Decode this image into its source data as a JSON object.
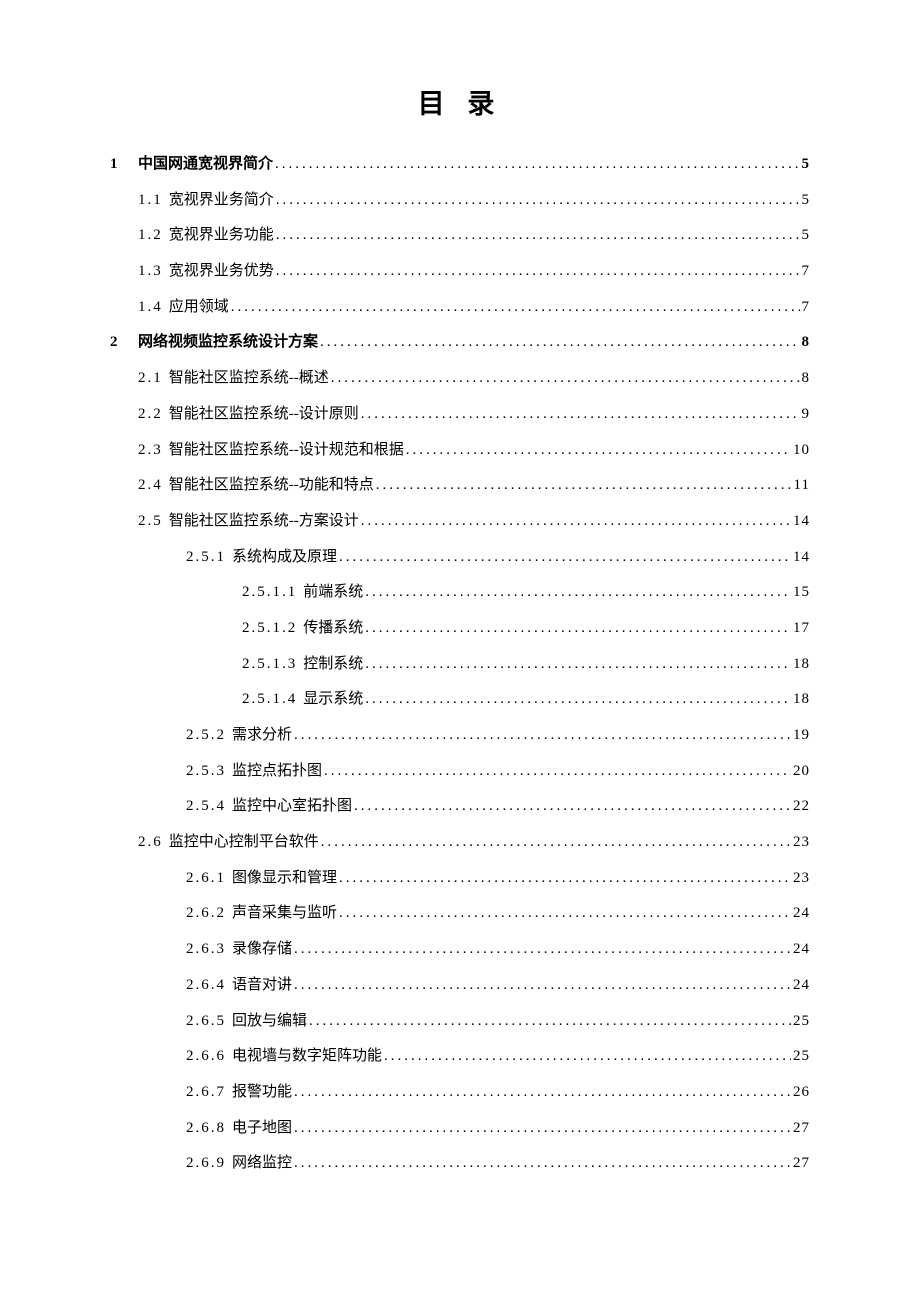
{
  "title": "目 录",
  "background_color": "#ffffff",
  "text_color": "#000000",
  "font_family": "SimSun",
  "title_fontsize": 27,
  "body_fontsize": 15,
  "line_height": 2.38,
  "entries": [
    {
      "level": 0,
      "num": "1",
      "title": "中国网通宽视界简介",
      "page": "5",
      "bold": true,
      "chapter": "1"
    },
    {
      "level": 1,
      "num": "1.1",
      "title": "宽视界业务简介",
      "page": "5"
    },
    {
      "level": 1,
      "num": "1.2",
      "title": "宽视界业务功能",
      "page": "5"
    },
    {
      "level": 1,
      "num": "1.3",
      "title": "宽视界业务优势",
      "page": "7"
    },
    {
      "level": 1,
      "num": "1.4",
      "title": "应用领域",
      "page": "7"
    },
    {
      "level": 0,
      "num": "2",
      "title": "网络视频监控系统设计方案",
      "page": "8",
      "bold": true,
      "chapter": "2"
    },
    {
      "level": 1,
      "num": "2.1",
      "title": "智能社区监控系统--概述",
      "page": "8"
    },
    {
      "level": 1,
      "num": "2.2",
      "title": "智能社区监控系统--设计原则",
      "page": "9"
    },
    {
      "level": 1,
      "num": "2.3",
      "title": "智能社区监控系统--设计规范和根据",
      "page": "10"
    },
    {
      "level": 1,
      "num": "2.4",
      "title": "智能社区监控系统--功能和特点",
      "page": "11"
    },
    {
      "level": 1,
      "num": "2.5",
      "title": "智能社区监控系统--方案设计",
      "page": "14"
    },
    {
      "level": 2,
      "num": "2.5.1",
      "title": "系统构成及原理",
      "page": "14"
    },
    {
      "level": 3,
      "num": "2.5.1.1",
      "title": "前端系统",
      "page": "15"
    },
    {
      "level": 3,
      "num": "2.5.1.2",
      "title": "传播系统",
      "page": "17"
    },
    {
      "level": 3,
      "num": "2.5.1.3",
      "title": "控制系统",
      "page": "18"
    },
    {
      "level": 3,
      "num": "2.5.1.4",
      "title": "显示系统",
      "page": "18"
    },
    {
      "level": 2,
      "num": "2.5.2",
      "title": "需求分析",
      "page": "19"
    },
    {
      "level": 2,
      "num": "2.5.3",
      "title": "监控点拓扑图",
      "page": "20"
    },
    {
      "level": 2,
      "num": "2.5.4",
      "title": "监控中心室拓扑图",
      "page": "22"
    },
    {
      "level": 1,
      "num": "2.6",
      "title": "监控中心控制平台软件",
      "page": "23"
    },
    {
      "level": 2,
      "num": "2.6.1",
      "title": "图像显示和管理",
      "page": "23"
    },
    {
      "level": 2,
      "num": "2.6.2",
      "title": "声音采集与监听",
      "page": "24"
    },
    {
      "level": 2,
      "num": "2.6.3",
      "title": "录像存储",
      "page": "24"
    },
    {
      "level": 2,
      "num": "2.6.4",
      "title": "语音对讲",
      "page": "24"
    },
    {
      "level": 2,
      "num": "2.6.5",
      "title": "回放与编辑",
      "page": "25"
    },
    {
      "level": 2,
      "num": "2.6.6",
      "title": "电视墙与数字矩阵功能",
      "page": "25"
    },
    {
      "level": 2,
      "num": "2.6.7",
      "title": "报警功能",
      "page": "26"
    },
    {
      "level": 2,
      "num": "2.6.8",
      "title": "电子地图",
      "page": "27"
    },
    {
      "level": 2,
      "num": "2.6.9",
      "title": "网络监控",
      "page": "27"
    }
  ]
}
